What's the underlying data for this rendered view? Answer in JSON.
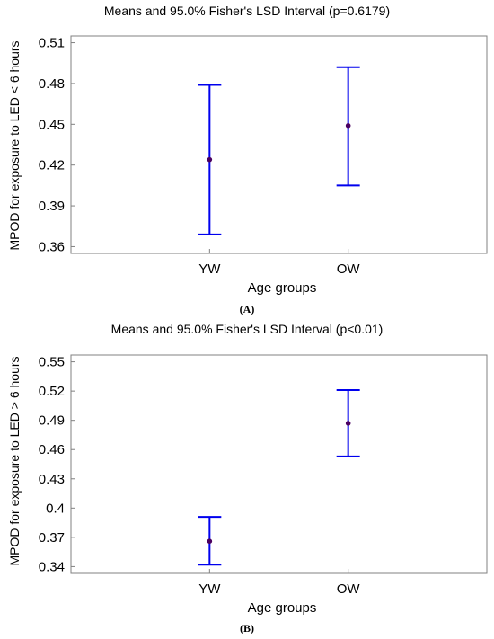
{
  "chart_data": [
    {
      "type": "errorbar",
      "panel_label": "(A)",
      "title": "Means and 95.0% Fisher's LSD Interval (p=0.6179)",
      "xlabel": "Age groups",
      "ylabel": "MPOD for exposure to LED < 6  hours",
      "categories": [
        "YW",
        "OW"
      ],
      "means": [
        0.424,
        0.449
      ],
      "lower": [
        0.369,
        0.405
      ],
      "upper": [
        0.479,
        0.492
      ],
      "ylim": [
        0.355,
        0.515
      ],
      "yticks": [
        0.36,
        0.39,
        0.42,
        0.45,
        0.48,
        0.51
      ],
      "ytick_labels": [
        "0.36",
        "0.39",
        "0.42",
        "0.45",
        "0.48",
        "0.51"
      ],
      "grid": false,
      "colors": {
        "interval": "#0000ee",
        "mean": "#4a0060",
        "axis": "#808080"
      }
    },
    {
      "type": "errorbar",
      "panel_label": "(B)",
      "title": "Means and 95.0% Fisher's LSD Interval (p<0.01)",
      "xlabel": "Age groups",
      "ylabel": "MPOD for exposure to LED > 6  hours",
      "categories": [
        "YW",
        "OW"
      ],
      "means": [
        0.366,
        0.487
      ],
      "lower": [
        0.342,
        0.453
      ],
      "upper": [
        0.391,
        0.521
      ],
      "ylim": [
        0.333,
        0.557
      ],
      "yticks": [
        0.34,
        0.37,
        0.4,
        0.43,
        0.46,
        0.49,
        0.52,
        0.55
      ],
      "ytick_labels": [
        "0.34",
        "0.37",
        "0.4",
        "0.43",
        "0.46",
        "0.49",
        "0.52",
        "0.55"
      ],
      "grid": false,
      "colors": {
        "interval": "#0000ee",
        "mean": "#4a0060",
        "axis": "#808080"
      }
    }
  ]
}
